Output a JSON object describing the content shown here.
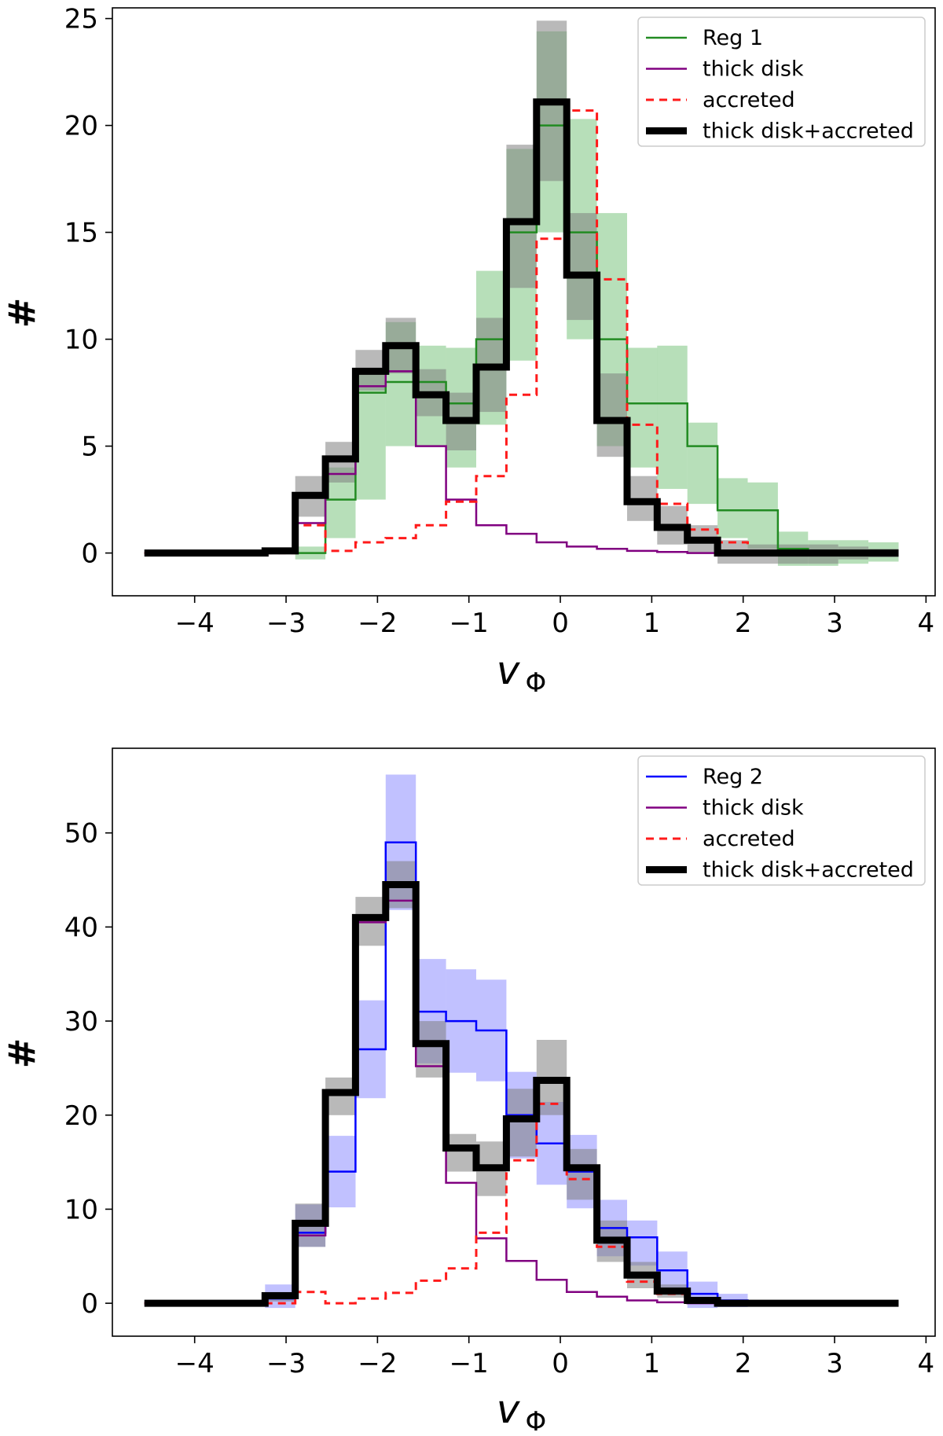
{
  "chart_data": [
    {
      "type": "step-histogram",
      "title": "",
      "xlabel": "v",
      "xlabel_sub": "Φ",
      "ylabel": "#",
      "xlim": [
        -4.9,
        4.1
      ],
      "ylim": [
        -2,
        25.5
      ],
      "xticks": [
        -4,
        -3,
        -2,
        -1,
        0,
        1,
        2,
        3,
        4
      ],
      "xtick_labels": [
        "−4",
        "−3",
        "−2",
        "−1",
        "0",
        "1",
        "2",
        "3",
        "4"
      ],
      "yticks": [
        0,
        5,
        10,
        15,
        20,
        25
      ],
      "ytick_labels": [
        "0",
        "5",
        "10",
        "15",
        "20",
        "25"
      ],
      "bin_edges": [
        -4.55,
        -4.22,
        -3.89,
        -3.56,
        -3.23,
        -2.9,
        -2.57,
        -2.24,
        -1.91,
        -1.58,
        -1.25,
        -0.92,
        -0.59,
        -0.26,
        0.07,
        0.4,
        0.73,
        1.06,
        1.39,
        1.72,
        2.05,
        2.38,
        2.71,
        3.04,
        3.37,
        3.7
      ],
      "legend_position": "upper right",
      "series": [
        {
          "name": "Reg 1",
          "color": "#228b22",
          "style": "solid-thin",
          "band_color": "#4caf50",
          "values": [
            0,
            0,
            0,
            0,
            0,
            0,
            2.5,
            7.5,
            8,
            8,
            7,
            10,
            15,
            20,
            15,
            10,
            7,
            7,
            5,
            2,
            2,
            0.2,
            0,
            0,
            0
          ],
          "band_low": [
            0,
            0,
            0,
            0,
            0,
            -0.3,
            0.7,
            2.5,
            5,
            5,
            4,
            6,
            9,
            15,
            10,
            5,
            4,
            3,
            2.3,
            0.7,
            0.2,
            -0.6,
            -0.6,
            -0.5,
            -0.4
          ],
          "band_high": [
            0,
            0,
            0,
            0,
            0,
            0.3,
            4,
            8.5,
            10.8,
            9.7,
            9.6,
            13.2,
            18.9,
            24.4,
            20.3,
            15.9,
            9.6,
            9.7,
            6.1,
            3.5,
            3.3,
            1,
            0.6,
            0.6,
            0.5
          ]
        },
        {
          "name": "thick disk",
          "color": "#800080",
          "style": "solid-thin",
          "values": [
            0,
            0,
            0,
            0,
            0.1,
            1.4,
            3.7,
            7.8,
            8.5,
            5,
            2.5,
            1.3,
            0.9,
            0.5,
            0.3,
            0.2,
            0.1,
            0.05,
            0,
            0,
            0,
            0,
            0,
            0,
            0
          ]
        },
        {
          "name": "accreted",
          "color": "#ff1a1a",
          "style": "dashed",
          "values": [
            0,
            0,
            0,
            0,
            0,
            1.3,
            0.1,
            0.5,
            0.7,
            1.3,
            2.4,
            3.6,
            7.4,
            14.7,
            20.7,
            12.8,
            6,
            2.3,
            1.1,
            0.5,
            0,
            0,
            0,
            0,
            0
          ]
        },
        {
          "name": "thick disk+accreted",
          "color": "#000000",
          "style": "solid-thick",
          "band_color": "#808080",
          "values": [
            0,
            0,
            0,
            0,
            0.1,
            2.7,
            4.4,
            8.5,
            9.7,
            7.4,
            6.2,
            8.7,
            15.5,
            21.1,
            13,
            6.2,
            2.4,
            1.2,
            0.6,
            0,
            0,
            0,
            0,
            0,
            0
          ],
          "band_low": [
            0,
            0,
            0,
            0,
            0,
            1.7,
            3.3,
            7.6,
            8.4,
            6.4,
            4.8,
            6.6,
            12.4,
            17.4,
            10.9,
            4.5,
            1.5,
            0.4,
            0,
            -0.5,
            -0.5,
            -0.5,
            -0.5,
            -0.3,
            -0.2
          ],
          "band_high": [
            0,
            0,
            0,
            0,
            0.2,
            3.6,
            5.2,
            9.5,
            11,
            8.6,
            7.5,
            11,
            19.1,
            24.9,
            15.9,
            8.4,
            3.6,
            2.2,
            1.3,
            0.6,
            0.4,
            0.4,
            0.4,
            0.3,
            0.2
          ]
        }
      ]
    },
    {
      "type": "step-histogram",
      "title": "",
      "xlabel": "v",
      "xlabel_sub": "Φ",
      "ylabel": "#",
      "xlim": [
        -4.9,
        4.1
      ],
      "ylim": [
        -3.5,
        59
      ],
      "xticks": [
        -4,
        -3,
        -2,
        -1,
        0,
        1,
        2,
        3,
        4
      ],
      "xtick_labels": [
        "−4",
        "−3",
        "−2",
        "−1",
        "0",
        "1",
        "2",
        "3",
        "4"
      ],
      "yticks": [
        0,
        10,
        20,
        30,
        40,
        50
      ],
      "ytick_labels": [
        "0",
        "10",
        "20",
        "30",
        "40",
        "50"
      ],
      "bin_edges": [
        -4.55,
        -4.22,
        -3.89,
        -3.56,
        -3.23,
        -2.9,
        -2.57,
        -2.24,
        -1.91,
        -1.58,
        -1.25,
        -0.92,
        -0.59,
        -0.26,
        0.07,
        0.4,
        0.73,
        1.06,
        1.39,
        1.72,
        2.05,
        2.38,
        2.71,
        3.04,
        3.37,
        3.7
      ],
      "legend_position": "upper right",
      "series": [
        {
          "name": "Reg 2",
          "color": "#0000ff",
          "style": "solid-thin",
          "band_color": "#6464ff",
          "values": [
            0,
            0,
            0,
            0,
            0.5,
            7.5,
            14,
            27,
            49,
            31,
            30,
            29,
            20,
            17,
            14,
            8,
            7,
            3.5,
            1,
            0.3,
            0,
            0,
            0,
            0,
            0
          ],
          "band_low": [
            0,
            0,
            0,
            0,
            -0.5,
            6,
            10.2,
            21.8,
            41.8,
            25.5,
            24.5,
            23.6,
            15.4,
            12.6,
            10.1,
            5,
            4,
            1.5,
            -0.5,
            -0.4,
            -0.2,
            0,
            0,
            0,
            0
          ],
          "band_high": [
            0,
            0,
            0,
            0,
            2,
            10.5,
            17.8,
            32.2,
            56.2,
            36.6,
            35.5,
            34.4,
            24.6,
            21.4,
            17.9,
            11,
            8.8,
            5.5,
            2.3,
            1,
            0.3,
            0.1,
            0.1,
            0,
            0
          ]
        },
        {
          "name": "thick disk",
          "color": "#800080",
          "style": "solid-thin",
          "values": [
            0,
            0,
            0,
            0,
            0.8,
            7.2,
            22.3,
            40.5,
            42.8,
            25.2,
            12.8,
            6.9,
            4.5,
            2.5,
            1.2,
            0.7,
            0.3,
            0.1,
            0,
            0,
            0,
            0,
            0,
            0,
            0
          ]
        },
        {
          "name": "accreted",
          "color": "#ff1a1a",
          "style": "dashed",
          "values": [
            0,
            0,
            0,
            0,
            0,
            1.2,
            0,
            0.5,
            1.1,
            2.4,
            3.7,
            7.5,
            15.2,
            21.2,
            13.2,
            6,
            2.3,
            1,
            0.3,
            0,
            0,
            0,
            0,
            0,
            0
          ],
          "band_low": [],
          "band_high": []
        },
        {
          "name": "thick disk+accreted",
          "color": "#000000",
          "style": "solid-thick",
          "band_color": "#808080",
          "values": [
            0,
            0,
            0,
            0,
            0.8,
            8.5,
            22.4,
            41,
            44.5,
            27.6,
            16.5,
            14.4,
            19.6,
            23.7,
            14.4,
            6.7,
            3,
            1.3,
            0.3,
            0,
            0,
            0,
            0,
            0,
            0
          ],
          "band_low": [
            0,
            0,
            0,
            0,
            0.2,
            6,
            20,
            38,
            42,
            24,
            14,
            11.4,
            15.6,
            20,
            11,
            4.4,
            1.6,
            0.6,
            0,
            -0.3,
            -0.3,
            -0.2,
            -0.2,
            -0.1,
            -0.1
          ],
          "band_high": [
            0,
            0,
            0,
            0,
            1.2,
            10.6,
            24,
            43.2,
            47,
            30,
            18,
            17.2,
            22.8,
            28,
            16.4,
            8.8,
            4.4,
            2,
            0.7,
            0.3,
            0.3,
            0.2,
            0.2,
            0.1,
            0.1
          ]
        }
      ]
    }
  ]
}
